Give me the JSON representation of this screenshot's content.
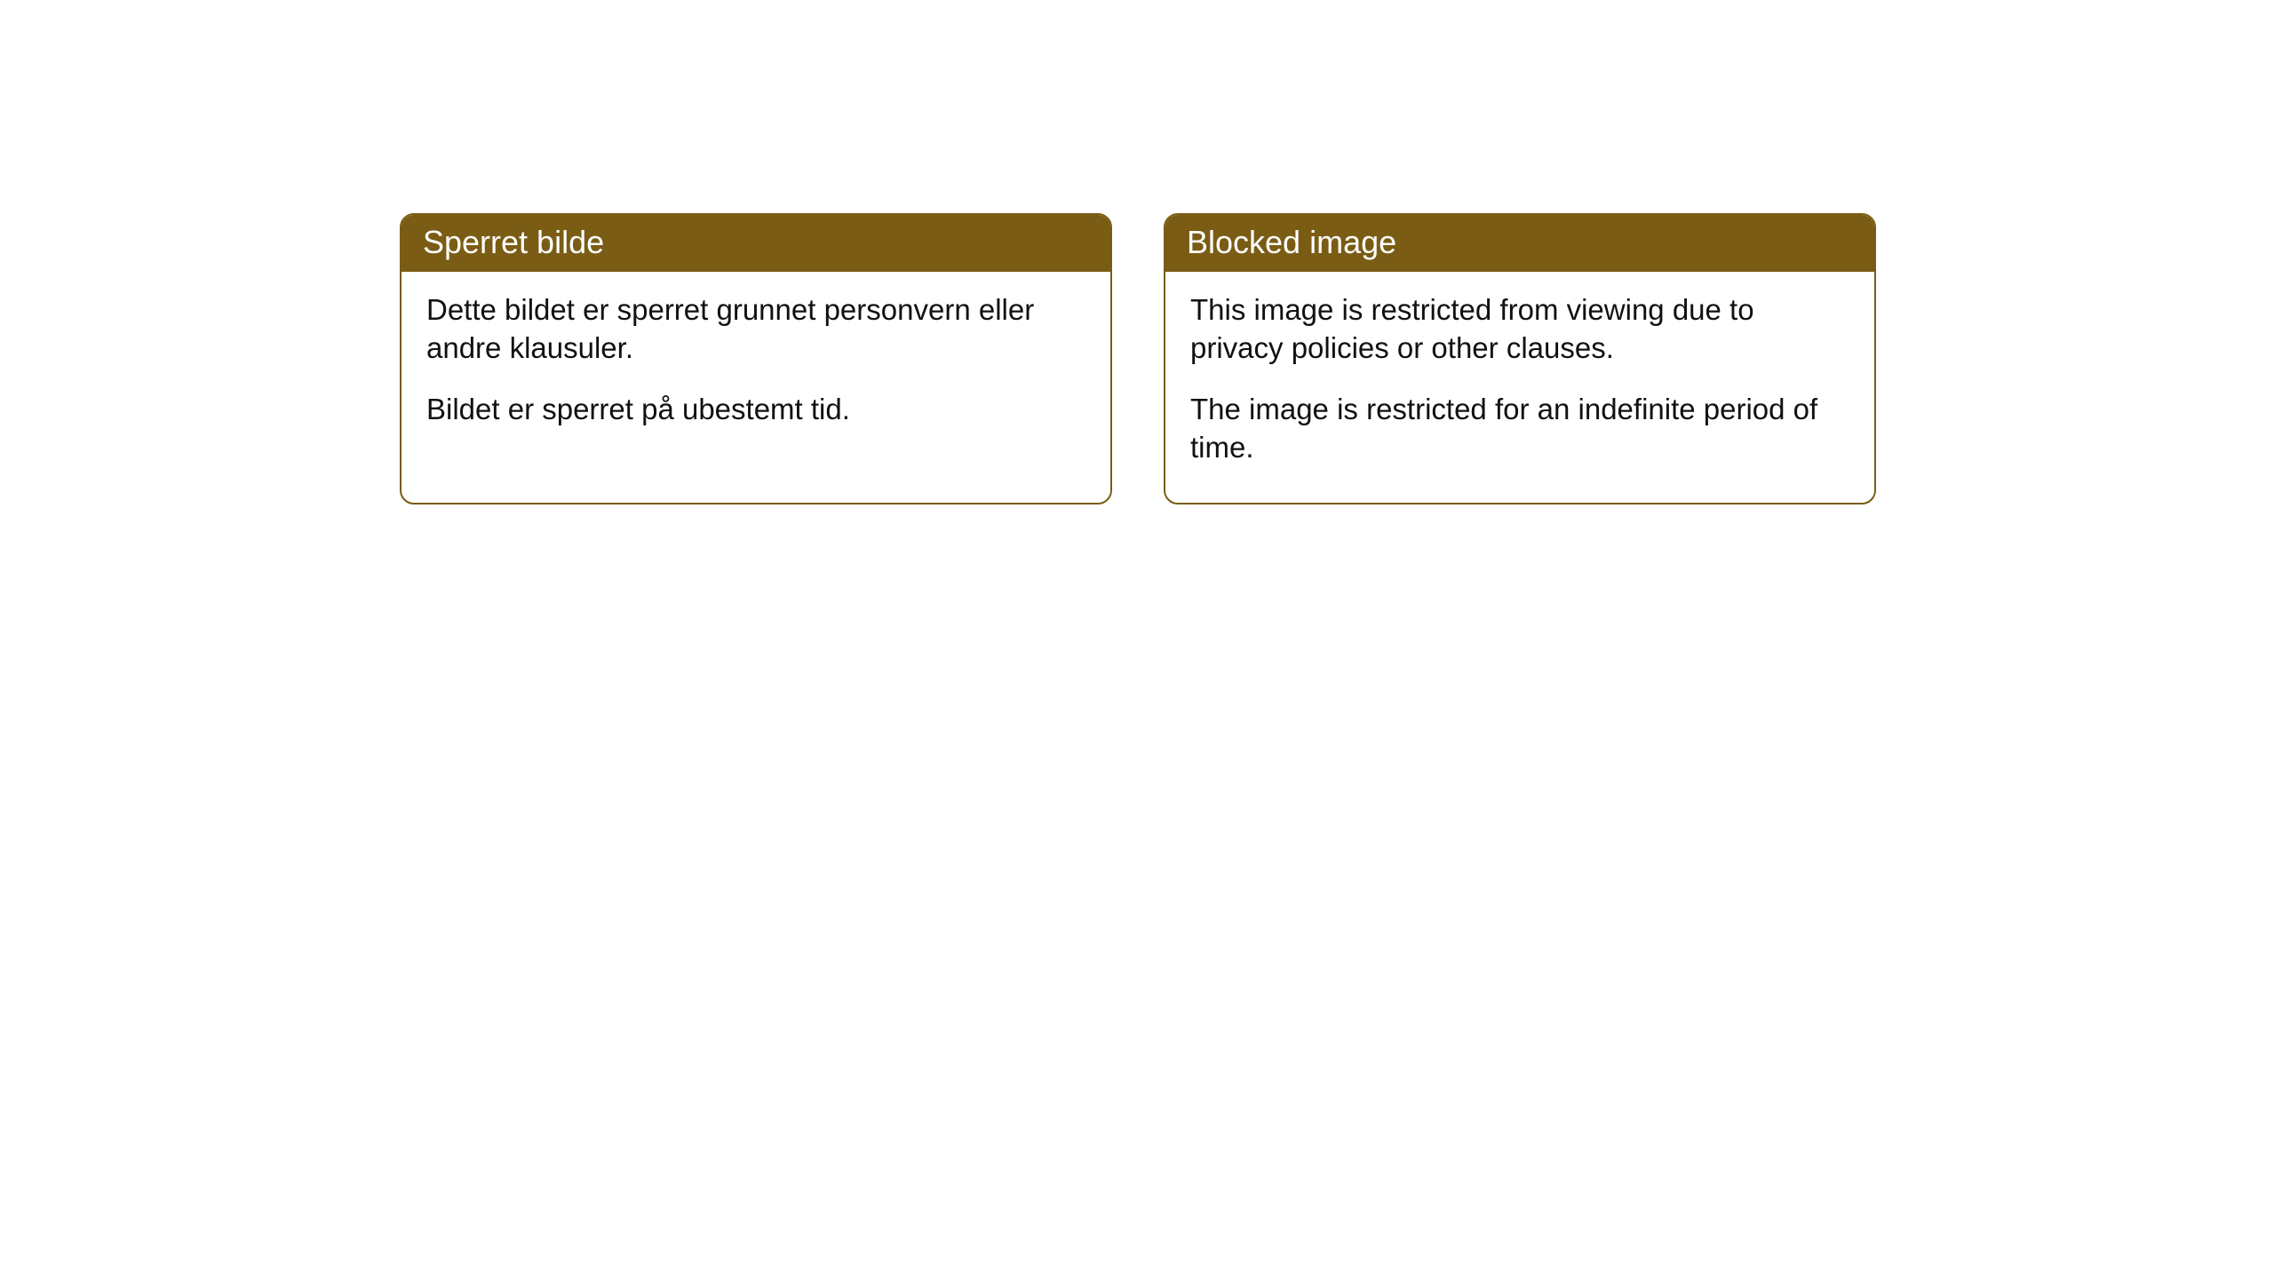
{
  "cards": [
    {
      "header": "Sperret bilde",
      "paragraph1": "Dette bildet er sperret grunnet personvern eller andre klausuler.",
      "paragraph2": "Bildet er sperret på ubestemt tid."
    },
    {
      "header": "Blocked image",
      "paragraph1": "This image is restricted from viewing due to privacy policies or other clauses.",
      "paragraph2": "The image is restricted for an indefinite period of time."
    }
  ],
  "styling": {
    "header_bg_color": "#7a5c14",
    "header_text_color": "#ffffff",
    "border_color": "#7a5c14",
    "body_text_color": "#111111",
    "card_bg_color": "#ffffff",
    "page_bg_color": "#ffffff",
    "border_radius": 16,
    "header_fontsize": 36,
    "body_fontsize": 33
  }
}
